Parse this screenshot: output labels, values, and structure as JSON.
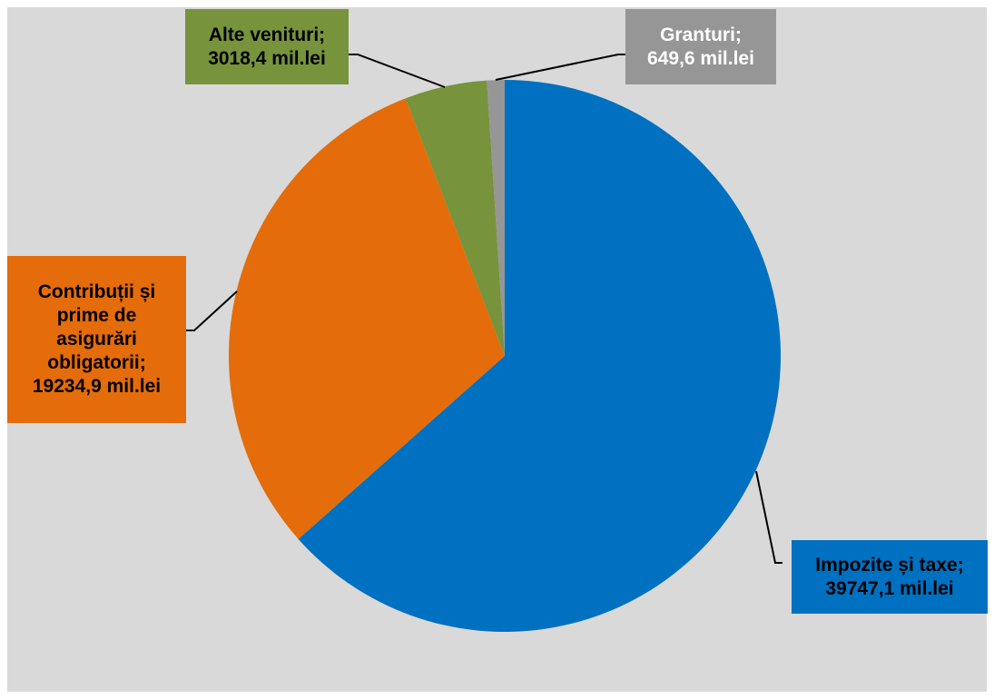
{
  "chart_data": {
    "type": "pie",
    "unit": "mil.lei",
    "slices": [
      {
        "label_lines": [
          "Impozite și taxe;",
          "39747,1 mil.lei"
        ],
        "category": "Impozite și taxe",
        "value": 39747.1,
        "color": "#0070c0",
        "text_color": "#000000"
      },
      {
        "label_lines": [
          "Contribuții și",
          "prime de",
          "asigurări",
          "obligatorii;",
          "19234,9 mil.lei"
        ],
        "category": "Contribuții și prime de asigurări obligatorii",
        "value": 19234.9,
        "color": "#e46c0a",
        "text_color": "#000000"
      },
      {
        "label_lines": [
          "Alte venituri;",
          "3018,4 mil.lei"
        ],
        "category": "Alte venituri",
        "value": 3018.4,
        "color": "#77933c",
        "text_color": "#000000"
      },
      {
        "label_lines": [
          "Granturi;",
          "649,6 mil.lei"
        ],
        "category": "Granturi",
        "value": 649.6,
        "color": "#969696",
        "text_color": "#ffffff"
      }
    ],
    "background": "#d9d9d9",
    "legend": "none"
  }
}
